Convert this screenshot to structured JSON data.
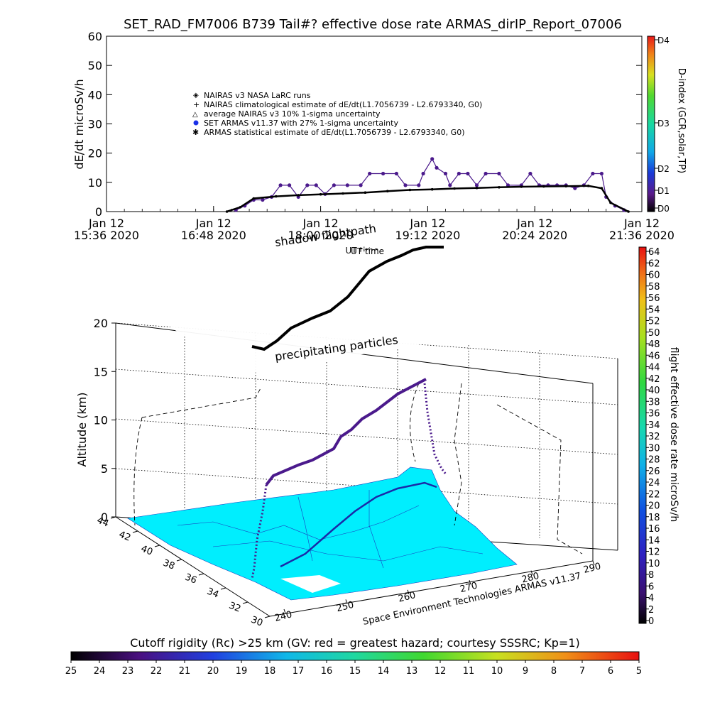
{
  "chart_data": [
    {
      "type": "scatter",
      "title": "SET_RAD_FM7006  B739 Tail#? effective dose rate ARMAS_dirIP_Report_07006",
      "ylabel": "dE/dt microSv/h",
      "ylim": [
        0,
        60
      ],
      "y_ticks": [
        "0",
        "10",
        "20",
        "30",
        "40",
        "50",
        "60"
      ],
      "x_ticks": [
        {
          "date": "Jan 12",
          "time": "15:36 2020"
        },
        {
          "date": "Jan 12",
          "time": "16:48 2020"
        },
        {
          "date": "Jan 12",
          "time": "18:00 2020"
        },
        {
          "date": "Jan 12",
          "time": "19:12 2020"
        },
        {
          "date": "Jan 12",
          "time": "20:24 2020"
        },
        {
          "date": "Jan 12",
          "time": "21:36 2020"
        }
      ],
      "x_label": "UT time",
      "legend_placement": "upper-left",
      "legend": [
        "NAIRAS v3 NASA LaRC runs",
        "NAIRAS climatological estimate of dE/dt(L1.7056739 - L2.6793340, G0)",
        "average NAIRAS v3 10% 1-sigma uncertainty",
        "SET ARMAS v11.37 with 27% 1-sigma uncertainty",
        "ARMAS statistical estimate of dE/dt(L1.7056739 - L2.6793340, G0)"
      ],
      "series": [
        {
          "name": "SET ARMAS v11.37 with 27% 1-sigma uncertainty",
          "color": "#4b1a8c",
          "points": [
            [
              17.05,
              0.5
            ],
            [
              17.15,
              2
            ],
            [
              17.25,
              4
            ],
            [
              17.35,
              4
            ],
            [
              17.45,
              5
            ],
            [
              17.55,
              9
            ],
            [
              17.65,
              9
            ],
            [
              17.75,
              5
            ],
            [
              17.85,
              9
            ],
            [
              17.95,
              9
            ],
            [
              18.05,
              6
            ],
            [
              18.15,
              9
            ],
            [
              18.3,
              9
            ],
            [
              18.45,
              9
            ],
            [
              18.55,
              13
            ],
            [
              18.7,
              13
            ],
            [
              18.85,
              13
            ],
            [
              18.95,
              9
            ],
            [
              19.1,
              9
            ],
            [
              19.15,
              13
            ],
            [
              19.25,
              18
            ],
            [
              19.3,
              15
            ],
            [
              19.4,
              13
            ],
            [
              19.45,
              9
            ],
            [
              19.55,
              13
            ],
            [
              19.65,
              13
            ],
            [
              19.75,
              9
            ],
            [
              19.85,
              13
            ],
            [
              20.0,
              13
            ],
            [
              20.1,
              9
            ],
            [
              20.25,
              9
            ],
            [
              20.35,
              13
            ],
            [
              20.45,
              9
            ],
            [
              20.55,
              9
            ],
            [
              20.65,
              9
            ],
            [
              20.75,
              9
            ],
            [
              20.85,
              8
            ],
            [
              20.95,
              9
            ],
            [
              21.05,
              13
            ],
            [
              21.15,
              13
            ],
            [
              21.2,
              5
            ],
            [
              21.3,
              2
            ],
            [
              21.4,
              0.5
            ]
          ]
        },
        {
          "name": "ARMAS statistical estimate of dE/dt(L1.7056739 - L2.6793340, G0)",
          "color": "#000000",
          "points": [
            [
              16.95,
              0
            ],
            [
              17.1,
              1.5
            ],
            [
              17.25,
              4.5
            ],
            [
              17.5,
              5.2
            ],
            [
              17.75,
              5.6
            ],
            [
              18.0,
              5.9
            ],
            [
              18.25,
              6.2
            ],
            [
              18.5,
              6.5
            ],
            [
              18.75,
              7.0
            ],
            [
              19.0,
              7.4
            ],
            [
              19.25,
              7.6
            ],
            [
              19.5,
              7.9
            ],
            [
              19.75,
              8.1
            ],
            [
              20.0,
              8.3
            ],
            [
              20.25,
              8.5
            ],
            [
              20.5,
              8.6
            ],
            [
              20.75,
              8.7
            ],
            [
              21.0,
              8.8
            ],
            [
              21.15,
              8.0
            ],
            [
              21.25,
              3
            ],
            [
              21.45,
              0
            ]
          ]
        }
      ],
      "right_axis": {
        "label": "D-index (GCR,solar,TP)",
        "ticks": [
          "D0",
          "D1",
          "D2",
          "D3",
          "D4"
        ]
      }
    },
    {
      "type": "3d-scatter",
      "zlabel": "Altitude (km)",
      "zlim": [
        0,
        20
      ],
      "z_ticks": [
        "0",
        "5",
        "10",
        "15",
        "20"
      ],
      "lat_ticks": [
        "30",
        "32",
        "34",
        "36",
        "38",
        "40",
        "42",
        "44"
      ],
      "lon_ticks": [
        "240",
        "250",
        "260",
        "270",
        "280",
        "290"
      ],
      "annotations": [
        "shadow flightpath",
        "UT time",
        "precipitating particles"
      ],
      "credit": "Space Environment Technologies ARMAS v11.37",
      "flight_path": [
        {
          "lon": 241,
          "lat": 34.5,
          "alt": 0.5
        },
        {
          "lon": 242,
          "lat": 36,
          "alt": 5
        },
        {
          "lon": 248,
          "lat": 38.5,
          "alt": 7
        },
        {
          "lon": 255,
          "lat": 40,
          "alt": 9.5
        },
        {
          "lon": 262,
          "lat": 41.5,
          "alt": 11
        },
        {
          "lon": 269,
          "lat": 42.5,
          "alt": 12
        },
        {
          "lon": 275,
          "lat": 43.5,
          "alt": 12
        },
        {
          "lon": 279,
          "lat": 40,
          "alt": 5
        },
        {
          "lon": 281,
          "lat": 38,
          "alt": 0.5
        }
      ],
      "colorbar": {
        "label": "flight effective dose rate microSv/h",
        "ticks": [
          "0",
          "2",
          "4",
          "6",
          "8",
          "10",
          "12",
          "14",
          "16",
          "18",
          "20",
          "22",
          "24",
          "26",
          "28",
          "30",
          "32",
          "34",
          "36",
          "38",
          "40",
          "42",
          "44",
          "46",
          "48",
          "50",
          "52",
          "54",
          "56",
          "58",
          "60",
          "62",
          "64"
        ]
      }
    },
    {
      "type": "colorbar",
      "label": "Cutoff rigidity (Rc) >25 km (GV: red = greatest hazard; courtesy SSSRC; Kp=1)",
      "ticks": [
        "25",
        "24",
        "23",
        "22",
        "21",
        "20",
        "19",
        "18",
        "17",
        "16",
        "15",
        "14",
        "13",
        "12",
        "11",
        "10",
        "9",
        "8",
        "7",
        "6",
        "5"
      ]
    }
  ]
}
